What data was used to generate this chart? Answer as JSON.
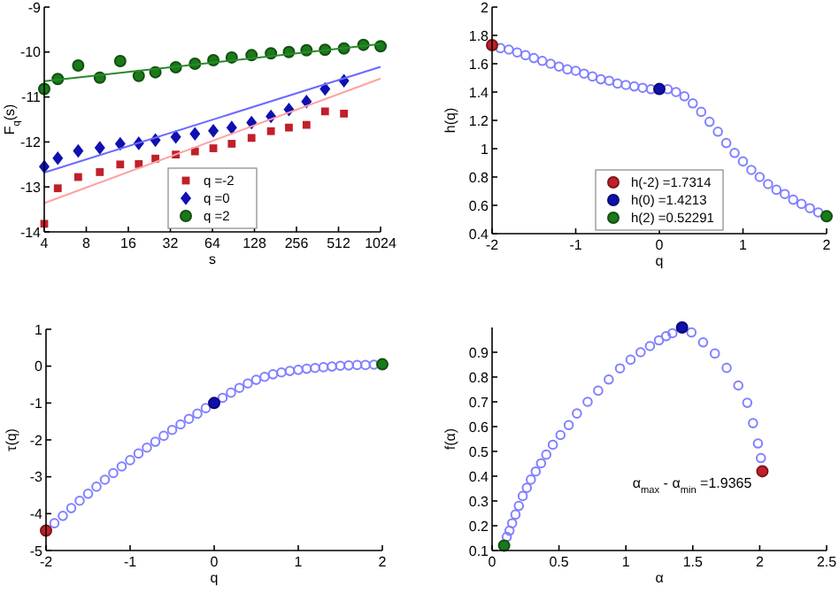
{
  "chart_data": [
    {
      "type": "scatter",
      "xlabel": "s",
      "ylabel": "F$_{q}$(s)",
      "log": "x",
      "xlim": [
        4,
        1024
      ],
      "xticks": [
        4,
        8,
        16,
        32,
        64,
        128,
        256,
        512,
        1024
      ],
      "ylim": [
        -14,
        -9
      ],
      "yticks": [
        -14,
        -13,
        -12,
        -11,
        -10,
        -9
      ],
      "legend": "bottom",
      "series": [
        {
          "name": "q =-2",
          "color": "#c0202a",
          "marker": "square",
          "x": [
            4,
            5,
            7,
            10,
            14,
            19,
            25,
            35,
            48,
            65,
            88,
            122,
            168,
            226,
            302,
            410,
            560
          ],
          "values": [
            -13.82,
            -13.03,
            -12.78,
            -12.67,
            -12.5,
            -12.49,
            -12.37,
            -12.28,
            -12.21,
            -12.14,
            -12.04,
            -11.91,
            -11.76,
            -11.68,
            -11.62,
            -11.32,
            -11.37
          ]
        },
        {
          "name": "q =0",
          "color": "#1010b0",
          "marker": "diamond",
          "x": [
            4,
            5,
            7,
            10,
            14,
            19,
            25,
            35,
            48,
            65,
            88,
            122,
            168,
            226,
            302,
            410,
            560
          ],
          "values": [
            -12.55,
            -12.36,
            -12.2,
            -12.13,
            -12.04,
            -12.03,
            -11.96,
            -11.89,
            -11.82,
            -11.75,
            -11.68,
            -11.57,
            -11.43,
            -11.28,
            -11.1,
            -10.82,
            -10.64
          ]
        },
        {
          "name": "q =2",
          "color": "#1a7a1a",
          "marker": "circle",
          "x": [
            4,
            5,
            7,
            10,
            14,
            19,
            25,
            35,
            48,
            65,
            88,
            122,
            168,
            226,
            302,
            410,
            560,
            772,
            1024
          ],
          "values": [
            -10.82,
            -10.6,
            -10.3,
            -10.57,
            -10.2,
            -10.53,
            -10.45,
            -10.34,
            -10.26,
            -10.18,
            -10.12,
            -10.07,
            -10.03,
            -10.0,
            -9.96,
            -9.95,
            -9.92,
            -9.84,
            -9.87
          ]
        },
        {
          "type": "line",
          "color": "#ffa0a0",
          "x": [
            4,
            1024
          ],
          "values": [
            -13.36,
            -10.59
          ]
        },
        {
          "type": "line",
          "color": "#6a6aff",
          "x": [
            4,
            1024
          ],
          "values": [
            -12.68,
            -10.33
          ]
        },
        {
          "type": "line",
          "color": "#2a8a2a",
          "x": [
            4,
            1024
          ],
          "values": [
            -10.65,
            -9.82
          ]
        }
      ]
    },
    {
      "type": "scatter",
      "xlabel": "q",
      "ylabel": "h(q)",
      "xlim": [
        -2,
        2
      ],
      "xticks": [
        -2,
        -1,
        0,
        1,
        2
      ],
      "ylim": [
        0.4,
        2
      ],
      "yticks": [
        0.4,
        0.6,
        0.8,
        1,
        1.2,
        1.4,
        1.6,
        1.8,
        2
      ],
      "legend": "bottom",
      "series": [
        {
          "color": "#8080ff",
          "marker": "circle",
          "x": [
            -1.9,
            -1.8,
            -1.7,
            -1.6,
            -1.5,
            -1.4,
            -1.3,
            -1.2,
            -1.1,
            -1,
            -0.9,
            -0.8,
            -0.7,
            -0.6,
            -0.5,
            -0.4,
            -0.3,
            -0.2,
            -0.1,
            0.1,
            0.2,
            0.3,
            0.4,
            0.5,
            0.6,
            0.7,
            0.8,
            0.9,
            1,
            1.1,
            1.2,
            1.3,
            1.4,
            1.5,
            1.6,
            1.7,
            1.8,
            1.9
          ],
          "values": [
            1.71,
            1.7,
            1.68,
            1.66,
            1.64,
            1.62,
            1.6,
            1.58,
            1.56,
            1.55,
            1.53,
            1.51,
            1.49,
            1.48,
            1.46,
            1.45,
            1.44,
            1.43,
            1.42,
            1.42,
            1.4,
            1.37,
            1.32,
            1.26,
            1.19,
            1.12,
            1.04,
            0.97,
            0.91,
            0.85,
            0.8,
            0.75,
            0.71,
            0.68,
            0.64,
            0.61,
            0.58,
            0.55
          ]
        },
        {
          "name": "h(-2) =1.7314",
          "color": "#c0202a",
          "marker": "circle",
          "x": [
            -2
          ],
          "values": [
            1.7314
          ]
        },
        {
          "name": "h(0) =1.4213",
          "color": "#1010b0",
          "marker": "circle",
          "x": [
            0
          ],
          "values": [
            1.4213
          ]
        },
        {
          "name": "h(2) =0.52291",
          "color": "#1a7a1a",
          "marker": "circle",
          "x": [
            2
          ],
          "values": [
            0.52291
          ]
        }
      ]
    },
    {
      "type": "scatter",
      "xlabel": "q",
      "ylabel": "τ(q)",
      "xlim": [
        -2,
        2
      ],
      "xticks": [
        -2,
        -1,
        0,
        1,
        2
      ],
      "ylim": [
        -5,
        1
      ],
      "yticks": [
        -5,
        -4,
        -3,
        -2,
        -1,
        0,
        1
      ],
      "series": [
        {
          "color": "#8080ff",
          "marker": "circle",
          "x": [
            -1.9,
            -1.8,
            -1.7,
            -1.6,
            -1.5,
            -1.4,
            -1.3,
            -1.2,
            -1.1,
            -1,
            -0.9,
            -0.8,
            -0.7,
            -0.6,
            -0.5,
            -0.4,
            -0.3,
            -0.2,
            -0.1,
            0.1,
            0.2,
            0.3,
            0.4,
            0.5,
            0.6,
            0.7,
            0.8,
            0.9,
            1,
            1.1,
            1.2,
            1.3,
            1.4,
            1.5,
            1.6,
            1.7,
            1.8,
            1.9
          ],
          "values": [
            -4.26,
            -4.06,
            -3.85,
            -3.65,
            -3.46,
            -3.27,
            -3.08,
            -2.9,
            -2.72,
            -2.55,
            -2.37,
            -2.21,
            -2.05,
            -1.89,
            -1.73,
            -1.58,
            -1.43,
            -1.29,
            -1.14,
            -0.86,
            -0.72,
            -0.59,
            -0.47,
            -0.37,
            -0.29,
            -0.22,
            -0.17,
            -0.13,
            -0.1,
            -0.07,
            -0.05,
            -0.03,
            -0.01,
            0.01,
            0.02,
            0.03,
            0.03,
            0.04
          ]
        },
        {
          "color": "#c0202a",
          "marker": "circle",
          "x": [
            -2
          ],
          "values": [
            -4.46
          ]
        },
        {
          "color": "#1010b0",
          "marker": "circle",
          "x": [
            0
          ],
          "values": [
            -1
          ]
        },
        {
          "color": "#1a7a1a",
          "marker": "circle",
          "x": [
            2
          ],
          "values": [
            0.05
          ]
        }
      ]
    },
    {
      "type": "scatter",
      "xlabel": "α",
      "ylabel": "f(α)",
      "xlim": [
        0,
        2.5
      ],
      "xticks": [
        0,
        0.5,
        1,
        1.5,
        2,
        2.5
      ],
      "ylim": [
        0.1,
        1
      ],
      "yticks": [
        0.1,
        0.2,
        0.3,
        0.4,
        0.5,
        0.6,
        0.7,
        0.8,
        0.9
      ],
      "annotations": [
        "α$_{max}$ - α$_{min}$ =1.9365"
      ],
      "series": [
        {
          "color": "#8080ff",
          "marker": "circle",
          "x": [
            2.009,
            1.987,
            1.95,
            1.907,
            1.84,
            1.753,
            1.665,
            1.577,
            1.49,
            1.348,
            1.3,
            1.247,
            1.18,
            1.11,
            1.035,
            0.956,
            0.872,
            0.793,
            0.714,
            0.634,
            0.573,
            0.511,
            0.454,
            0.405,
            0.366,
            0.326,
            0.29,
            0.26,
            0.229,
            0.2,
            0.175,
            0.15,
            0.13,
            0.11
          ],
          "values": [
            0.473,
            0.532,
            0.614,
            0.696,
            0.766,
            0.837,
            0.895,
            0.94,
            0.98,
            0.977,
            0.965,
            0.948,
            0.925,
            0.9,
            0.87,
            0.835,
            0.79,
            0.745,
            0.7,
            0.653,
            0.606,
            0.566,
            0.527,
            0.487,
            0.452,
            0.419,
            0.386,
            0.353,
            0.32,
            0.28,
            0.245,
            0.21,
            0.18,
            0.155
          ]
        },
        {
          "color": "#c0202a",
          "marker": "circle",
          "x": [
            2.02
          ],
          "values": [
            0.42
          ]
        },
        {
          "color": "#1010b0",
          "marker": "circle",
          "x": [
            1.42
          ],
          "values": [
            1.0
          ]
        },
        {
          "color": "#1a7a1a",
          "marker": "circle",
          "x": [
            0.09
          ],
          "values": [
            0.12
          ]
        }
      ]
    }
  ]
}
